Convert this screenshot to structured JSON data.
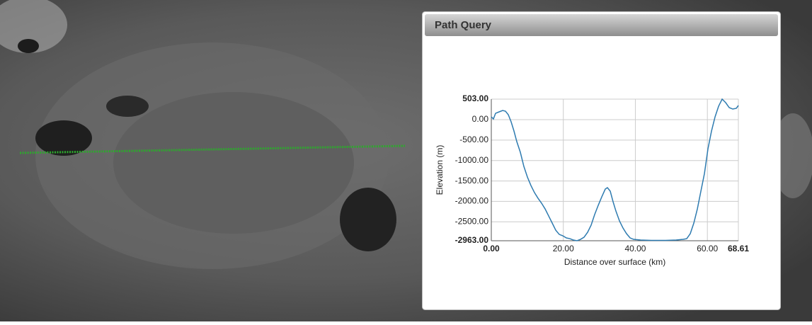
{
  "panel": {
    "title": "Path Query"
  },
  "chart_data": {
    "type": "line",
    "x_label": "Distance over surface (km)",
    "y_label": "Elevation (m)",
    "xlim": [
      0,
      68.61
    ],
    "ylim": [
      -2963,
      503
    ],
    "xticks": [
      {
        "value": 0,
        "label": "0.00"
      },
      {
        "value": 20,
        "label": "20.00"
      },
      {
        "value": 40,
        "label": "40.00"
      },
      {
        "value": 60,
        "label": "60.00"
      },
      {
        "value": 68.61,
        "label": "68.61"
      }
    ],
    "yticks": [
      {
        "value": -2963,
        "label": "-2963.00"
      },
      {
        "value": -2500,
        "label": "-2500.00"
      },
      {
        "value": -2000,
        "label": "-2000.00"
      },
      {
        "value": -1500,
        "label": "-1500.00"
      },
      {
        "value": -1000,
        "label": "-1000.00"
      },
      {
        "value": -500,
        "label": "-500.00"
      },
      {
        "value": 0,
        "label": "0.00"
      },
      {
        "value": 503,
        "label": "503.00"
      }
    ],
    "grid": true,
    "series": [
      {
        "color": "#2e7bb0",
        "x": [
          0,
          0.59,
          1.18,
          2.16,
          3.15,
          3.93,
          4.72,
          5.5,
          6.29,
          7.08,
          8.06,
          9.04,
          10.02,
          11.01,
          11.99,
          12.98,
          13.96,
          14.94,
          15.93,
          16.91,
          17.89,
          18.87,
          19.86,
          20.84,
          21.82,
          22.8,
          23.79,
          24.77,
          25.75,
          26.74,
          27.72,
          28.7,
          29.69,
          30.67,
          31.65,
          32.24,
          33.03,
          33.82,
          34.6,
          35.59,
          36.57,
          37.55,
          38.54,
          39.52,
          41.49,
          44.44,
          48.37,
          51.32,
          53.29,
          54.27,
          55.25,
          56.24,
          57.22,
          58.2,
          59.19,
          60.17,
          61.15,
          62.14,
          63.12,
          64.1,
          65.09,
          66.07,
          67.05,
          68.04,
          68.61
        ],
        "values": [
          70,
          18,
          156,
          191,
          225,
          208,
          122,
          -52,
          -277,
          -537,
          -797,
          -1144,
          -1404,
          -1612,
          -1785,
          -1924,
          -2045,
          -2184,
          -2357,
          -2530,
          -2704,
          -2808,
          -2842,
          -2894,
          -2912,
          -2946,
          -2963,
          -2929,
          -2877,
          -2756,
          -2582,
          -2322,
          -2097,
          -1889,
          -1698,
          -1664,
          -1750,
          -2010,
          -2236,
          -2478,
          -2652,
          -2790,
          -2894,
          -2929,
          -2946,
          -2955,
          -2955,
          -2946,
          -2929,
          -2912,
          -2790,
          -2530,
          -2184,
          -1750,
          -1317,
          -711,
          -277,
          70,
          330,
          503,
          416,
          295,
          260,
          278,
          347
        ]
      }
    ]
  }
}
